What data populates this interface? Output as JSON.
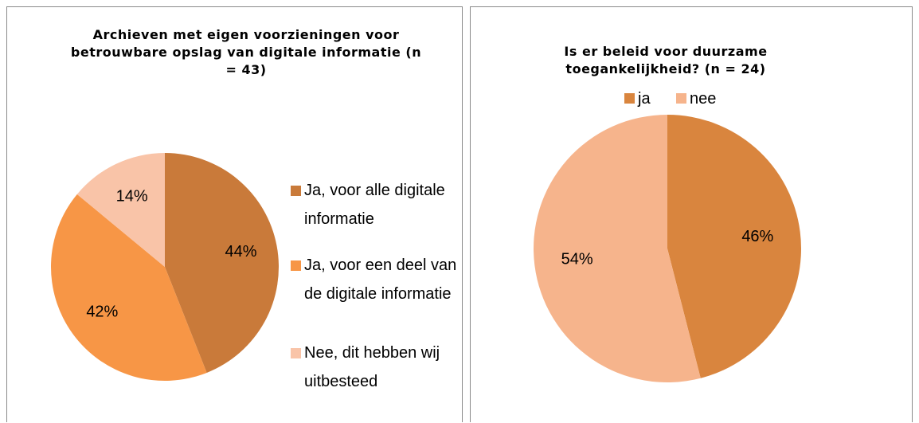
{
  "chart_data": [
    {
      "type": "pie",
      "title": "Archieven met eigen voorzieningen voor betrouwbare opslag van digitale informatie (n = 43)",
      "categories": [
        "Ja, voor alle digitale informatie",
        "Ja, voor een deel van de digitale informatie",
        "Nee, dit hebben wij uitbesteed"
      ],
      "values": [
        44,
        42,
        14
      ],
      "value_labels": [
        "44%",
        "42%",
        "14%"
      ],
      "colors": [
        "#c97a3a",
        "#f79646",
        "#f9c4a8"
      ],
      "legend": "right"
    },
    {
      "type": "pie",
      "title": "Is er beleid voor duurzame toegankelijkheid? (n = 24)",
      "categories": [
        "ja",
        "nee"
      ],
      "values": [
        46,
        54
      ],
      "value_labels": [
        "46%",
        "54%"
      ],
      "colors": [
        "#d9853e",
        "#f6b48c"
      ],
      "legend": "top"
    }
  ]
}
